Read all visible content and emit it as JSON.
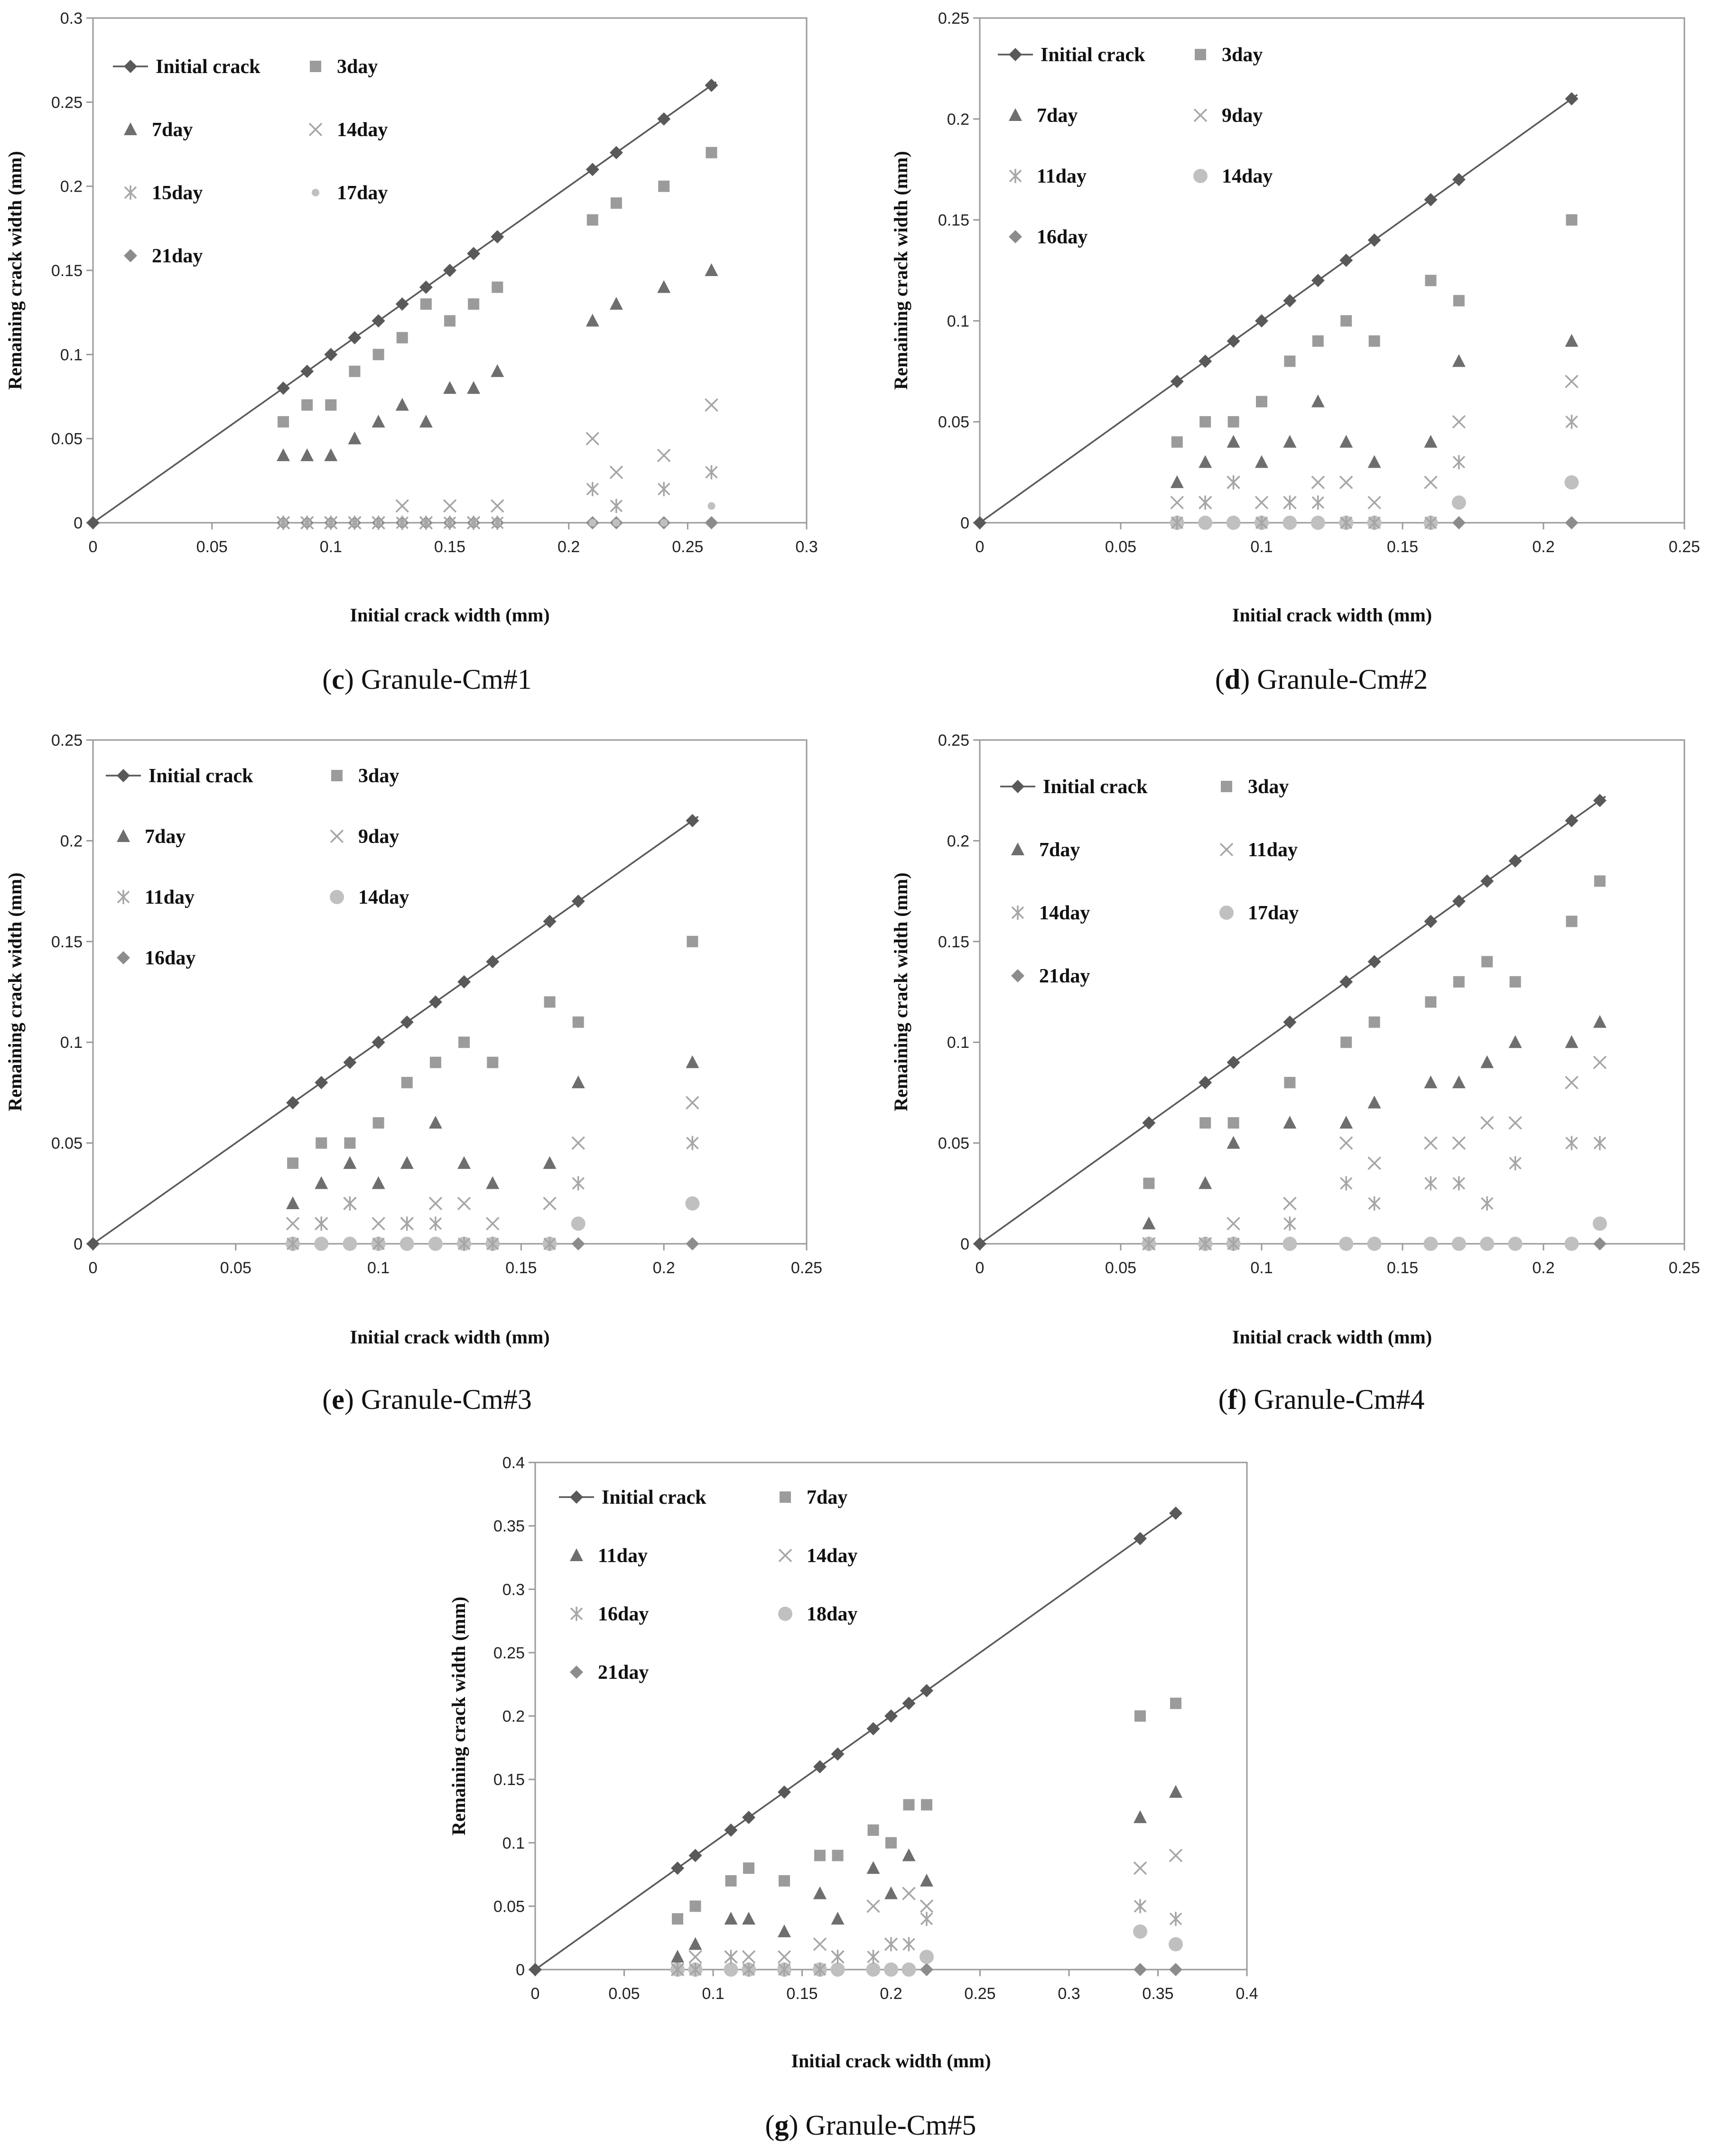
{
  "figure": {
    "panels": [
      {
        "caption_letter": "c",
        "caption_text": "Granule-Cm#1"
      },
      {
        "caption_letter": "d",
        "caption_text": "Granule-Cm#2"
      },
      {
        "caption_letter": "e",
        "caption_text": "Granule-Cm#3"
      },
      {
        "caption_letter": "f",
        "caption_text": "Granule-Cm#4"
      },
      {
        "caption_letter": "g",
        "caption_text": "Granule-Cm#5"
      }
    ]
  },
  "colors": {
    "initial": "#595959",
    "square": "#9b9b9b",
    "triangle": "#6e6e6e",
    "cross": "#a6a6a6",
    "star": "#a6a6a6",
    "circle": "#c0c0c0",
    "diamond_end": "#8c8c8c"
  },
  "chart_data": [
    {
      "type": "scatter",
      "title": "(c) Granule-Cm#1",
      "xlabel": "Initial crack width (mm)",
      "ylabel": "Remaining crack width (mm)",
      "xlim": [
        0,
        0.3
      ],
      "ylim": [
        0,
        0.3
      ],
      "xticks": [
        "0",
        "0.05",
        "0.1",
        "0.15",
        "0.2",
        "0.25",
        "0.3"
      ],
      "yticks": [
        "0",
        "0.05",
        "0.1",
        "0.15",
        "0.2",
        "0.25",
        "0.3"
      ],
      "x": [
        0.08,
        0.09,
        0.1,
        0.11,
        0.12,
        0.13,
        0.14,
        0.15,
        0.16,
        0.17,
        0.21,
        0.22,
        0.24,
        0.26
      ],
      "series": [
        {
          "name": "Initial crack",
          "marker": "diamond",
          "color": "#595959",
          "line": true,
          "values": [
            0.08,
            0.09,
            0.1,
            0.11,
            0.12,
            0.13,
            0.14,
            0.15,
            0.16,
            0.17,
            0.21,
            0.22,
            0.24,
            0.26
          ]
        },
        {
          "name": "3day",
          "marker": "square",
          "color": "#9b9b9b",
          "values": [
            0.06,
            0.07,
            0.07,
            0.09,
            0.1,
            0.11,
            0.13,
            0.12,
            0.13,
            0.14,
            0.18,
            0.19,
            0.2,
            0.22
          ]
        },
        {
          "name": "7day",
          "marker": "triangle",
          "color": "#6e6e6e",
          "values": [
            0.04,
            0.04,
            0.04,
            0.05,
            0.06,
            0.07,
            0.06,
            0.08,
            0.08,
            0.09,
            0.12,
            0.13,
            0.14,
            0.15
          ]
        },
        {
          "name": "14day",
          "marker": "cross",
          "color": "#a6a6a6",
          "values": [
            0,
            0,
            0,
            0,
            0,
            0.01,
            0,
            0.01,
            0,
            0.01,
            0.05,
            0.03,
            0.04,
            0.07
          ]
        },
        {
          "name": "15day",
          "marker": "star",
          "color": "#a6a6a6",
          "values": [
            0,
            0,
            0,
            0,
            0,
            0,
            0,
            0,
            0,
            0,
            0.02,
            0.01,
            0.02,
            0.03
          ]
        },
        {
          "name": "17day",
          "marker": "dot",
          "color": "#c0c0c0",
          "values": [
            0,
            0,
            0,
            0,
            0,
            0,
            0,
            0,
            0,
            0,
            0,
            0,
            0,
            0.01
          ]
        },
        {
          "name": "21day",
          "marker": "diamond",
          "color": "#8c8c8c",
          "values": [
            0,
            0,
            0,
            0,
            0,
            0,
            0,
            0,
            0,
            0,
            0,
            0,
            0,
            0
          ]
        }
      ]
    },
    {
      "type": "scatter",
      "title": "(d) Granule-Cm#2",
      "xlabel": "Initial crack width (mm)",
      "ylabel": "Remaining crack width (mm)",
      "xlim": [
        0,
        0.25
      ],
      "ylim": [
        0,
        0.25
      ],
      "xticks": [
        "0",
        "0.05",
        "0.1",
        "0.15",
        "0.2",
        "0.25"
      ],
      "yticks": [
        "0",
        "0.05",
        "0.1",
        "0.15",
        "0.2",
        "0.25"
      ],
      "x": [
        0.07,
        0.08,
        0.09,
        0.1,
        0.11,
        0.12,
        0.13,
        0.14,
        0.16,
        0.17,
        0.21
      ],
      "series": [
        {
          "name": "Initial crack",
          "marker": "diamond",
          "color": "#595959",
          "line": true,
          "values": [
            0.07,
            0.08,
            0.09,
            0.1,
            0.11,
            0.12,
            0.13,
            0.14,
            0.16,
            0.17,
            0.21
          ]
        },
        {
          "name": "3day",
          "marker": "square",
          "color": "#9b9b9b",
          "values": [
            0.04,
            0.05,
            0.05,
            0.06,
            0.08,
            0.09,
            0.1,
            0.09,
            0.12,
            0.11,
            0.15
          ]
        },
        {
          "name": "7day",
          "marker": "triangle",
          "color": "#6e6e6e",
          "values": [
            0.02,
            0.03,
            0.04,
            0.03,
            0.04,
            0.06,
            0.04,
            0.03,
            0.04,
            0.08,
            0.09
          ]
        },
        {
          "name": "9day",
          "marker": "cross",
          "color": "#a6a6a6",
          "values": [
            0.01,
            0.01,
            0.02,
            0.01,
            0.01,
            0.02,
            0.02,
            0.01,
            0.02,
            0.05,
            0.07
          ]
        },
        {
          "name": "11day",
          "marker": "star",
          "color": "#a6a6a6",
          "values": [
            0,
            0.01,
            0.02,
            0,
            0.01,
            0.01,
            0,
            0,
            0,
            0.03,
            0.05
          ]
        },
        {
          "name": "14day",
          "marker": "circle",
          "color": "#c0c0c0",
          "values": [
            0,
            0,
            0,
            0,
            0,
            0,
            0,
            0,
            0,
            0.01,
            0.02
          ]
        },
        {
          "name": "16day",
          "marker": "diamond",
          "color": "#8c8c8c",
          "values": [
            0,
            0,
            0,
            0,
            0,
            0,
            0,
            0,
            0,
            0,
            0
          ]
        }
      ]
    },
    {
      "type": "scatter",
      "title": "(e) Granule-Cm#3",
      "xlabel": "Initial crack width (mm)",
      "ylabel": "Remaining crack width (mm)",
      "xlim": [
        0,
        0.25
      ],
      "ylim": [
        0,
        0.25
      ],
      "xticks": [
        "0",
        "0.05",
        "0.1",
        "0.15",
        "0.2",
        "0.25"
      ],
      "yticks": [
        "0",
        "0.05",
        "0.1",
        "0.15",
        "0.2",
        "0.25"
      ],
      "x": [
        0.07,
        0.08,
        0.09,
        0.1,
        0.11,
        0.12,
        0.13,
        0.14,
        0.16,
        0.17,
        0.21
      ],
      "series": [
        {
          "name": "Initial crack",
          "marker": "diamond",
          "color": "#595959",
          "line": true,
          "values": [
            0.07,
            0.08,
            0.09,
            0.1,
            0.11,
            0.12,
            0.13,
            0.14,
            0.16,
            0.17,
            0.21
          ]
        },
        {
          "name": "3day",
          "marker": "square",
          "color": "#9b9b9b",
          "values": [
            0.04,
            0.05,
            0.05,
            0.06,
            0.08,
            0.09,
            0.1,
            0.09,
            0.12,
            0.11,
            0.15
          ]
        },
        {
          "name": "7day",
          "marker": "triangle",
          "color": "#6e6e6e",
          "values": [
            0.02,
            0.03,
            0.04,
            0.03,
            0.04,
            0.06,
            0.04,
            0.03,
            0.04,
            0.08,
            0.09
          ]
        },
        {
          "name": "9day",
          "marker": "cross",
          "color": "#a6a6a6",
          "values": [
            0.01,
            0.01,
            0.02,
            0.01,
            0.01,
            0.02,
            0.02,
            0.01,
            0.02,
            0.05,
            0.07
          ]
        },
        {
          "name": "11day",
          "marker": "star",
          "color": "#a6a6a6",
          "values": [
            0,
            0.01,
            0.02,
            0,
            0.01,
            0.01,
            0,
            0,
            0,
            0.03,
            0.05
          ]
        },
        {
          "name": "14day",
          "marker": "circle",
          "color": "#c0c0c0",
          "values": [
            0,
            0,
            0,
            0,
            0,
            0,
            0,
            0,
            0,
            0.01,
            0.02
          ]
        },
        {
          "name": "16day",
          "marker": "diamond",
          "color": "#8c8c8c",
          "values": [
            0,
            0,
            0,
            0,
            0,
            0,
            0,
            0,
            0,
            0,
            0
          ]
        }
      ]
    },
    {
      "type": "scatter",
      "title": "(f) Granule-Cm#4",
      "xlabel": "Initial crack width (mm)",
      "ylabel": "Remaining crack width (mm)",
      "xlim": [
        0,
        0.25
      ],
      "ylim": [
        0,
        0.25
      ],
      "xticks": [
        "0",
        "0.05",
        "0.1",
        "0.15",
        "0.2",
        "0.25"
      ],
      "yticks": [
        "0",
        "0.05",
        "0.1",
        "0.15",
        "0.2",
        "0.25"
      ],
      "x": [
        0.06,
        0.08,
        0.09,
        0.11,
        0.13,
        0.14,
        0.16,
        0.17,
        0.18,
        0.19,
        0.21,
        0.22
      ],
      "series": [
        {
          "name": "Initial crack",
          "marker": "diamond",
          "color": "#595959",
          "line": true,
          "values": [
            0.06,
            0.08,
            0.09,
            0.11,
            0.13,
            0.14,
            0.16,
            0.17,
            0.18,
            0.19,
            0.21,
            0.22
          ]
        },
        {
          "name": "3day",
          "marker": "square",
          "color": "#9b9b9b",
          "values": [
            0.03,
            0.06,
            0.06,
            0.08,
            0.1,
            0.11,
            0.12,
            0.13,
            0.14,
            0.13,
            0.16,
            0.18
          ]
        },
        {
          "name": "7day",
          "marker": "triangle",
          "color": "#6e6e6e",
          "values": [
            0.01,
            0.03,
            0.05,
            0.06,
            0.06,
            0.07,
            0.08,
            0.08,
            0.09,
            0.1,
            0.1,
            0.11
          ]
        },
        {
          "name": "11day",
          "marker": "cross",
          "color": "#a6a6a6",
          "values": [
            0,
            0,
            0.01,
            0.02,
            0.05,
            0.04,
            0.05,
            0.05,
            0.06,
            0.06,
            0.08,
            0.09
          ]
        },
        {
          "name": "14day",
          "marker": "star",
          "color": "#a6a6a6",
          "values": [
            0,
            0,
            0,
            0.01,
            0.03,
            0.02,
            0.03,
            0.03,
            0.02,
            0.04,
            0.05,
            0.05
          ]
        },
        {
          "name": "17day",
          "marker": "circle",
          "color": "#c0c0c0",
          "values": [
            0,
            0,
            0,
            0,
            0,
            0,
            0,
            0,
            0,
            0,
            0,
            0.01
          ]
        },
        {
          "name": "21day",
          "marker": "diamond",
          "color": "#8c8c8c",
          "values": [
            0,
            0,
            0,
            0,
            0,
            0,
            0,
            0,
            0,
            0,
            0,
            0
          ]
        }
      ]
    },
    {
      "type": "scatter",
      "title": "(g) Granule-Cm#5",
      "xlabel": "Initial crack width (mm)",
      "ylabel": "Remaining crack width (mm)",
      "xlim": [
        0,
        0.4
      ],
      "ylim": [
        0,
        0.4
      ],
      "xticks": [
        "0",
        "0.05",
        "0.1",
        "0.15",
        "0.2",
        "0.25",
        "0.3",
        "0.35",
        "0.4"
      ],
      "yticks": [
        "0",
        "0.05",
        "0.1",
        "0.15",
        "0.2",
        "0.25",
        "0.3",
        "0.35",
        "0.4"
      ],
      "x": [
        0.08,
        0.09,
        0.11,
        0.12,
        0.14,
        0.16,
        0.17,
        0.19,
        0.2,
        0.21,
        0.22,
        0.34,
        0.36
      ],
      "series": [
        {
          "name": "Initial crack",
          "marker": "diamond",
          "color": "#595959",
          "line": true,
          "values": [
            0.08,
            0.09,
            0.11,
            0.12,
            0.14,
            0.16,
            0.17,
            0.19,
            0.2,
            0.21,
            0.22,
            0.34,
            0.36
          ]
        },
        {
          "name": "7day",
          "marker": "square",
          "color": "#9b9b9b",
          "values": [
            0.04,
            0.05,
            0.07,
            0.08,
            0.07,
            0.09,
            0.09,
            0.11,
            0.1,
            0.13,
            0.13,
            0.2,
            0.21
          ]
        },
        {
          "name": "11day",
          "marker": "triangle",
          "color": "#6e6e6e",
          "values": [
            0.01,
            0.02,
            0.04,
            0.04,
            0.03,
            0.06,
            0.04,
            0.08,
            0.06,
            0.09,
            0.07,
            0.12,
            0.14
          ]
        },
        {
          "name": "14day",
          "marker": "cross",
          "color": "#a6a6a6",
          "values": [
            0,
            0.01,
            0.01,
            0.01,
            0.01,
            0.02,
            0.01,
            0.05,
            0.02,
            0.06,
            0.05,
            0.08,
            0.09
          ]
        },
        {
          "name": "16day",
          "marker": "star",
          "color": "#a6a6a6",
          "values": [
            0,
            0,
            0.01,
            0,
            0,
            0,
            0.01,
            0.01,
            0.02,
            0.02,
            0.04,
            0.05,
            0.04
          ]
        },
        {
          "name": "18day",
          "marker": "circle",
          "color": "#c0c0c0",
          "values": [
            0,
            0,
            0,
            0,
            0,
            0,
            0,
            0,
            0,
            0,
            0.01,
            0.03,
            0.02
          ]
        },
        {
          "name": "21day",
          "marker": "diamond",
          "color": "#8c8c8c",
          "values": [
            0,
            0,
            0,
            0,
            0,
            0,
            0,
            0,
            0,
            0,
            0,
            0,
            0
          ]
        }
      ]
    }
  ]
}
